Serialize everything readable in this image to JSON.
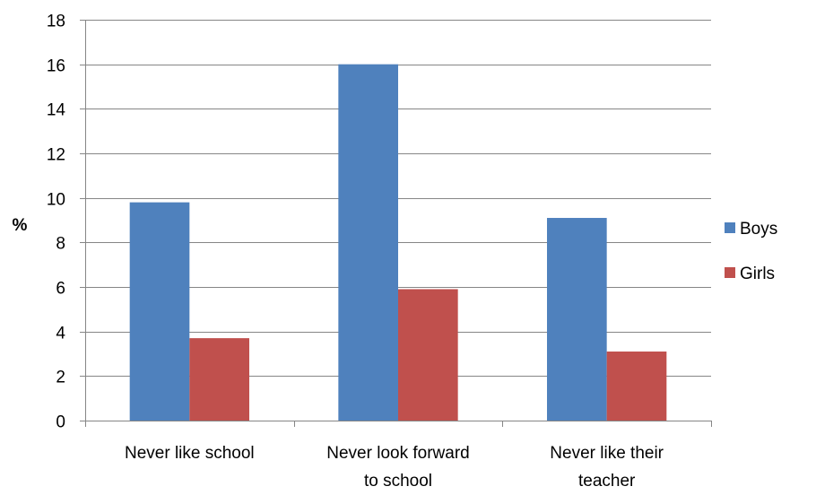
{
  "chart_data": {
    "type": "bar",
    "title": "",
    "xlabel": "",
    "ylabel": "%",
    "ylim": [
      0,
      18
    ],
    "yticks": [
      0,
      2,
      4,
      6,
      8,
      10,
      12,
      14,
      16,
      18
    ],
    "grid": true,
    "legend_position": "right",
    "categories": [
      [
        "Never like school"
      ],
      [
        "Never look forward",
        "to school"
      ],
      [
        "Never like their",
        "teacher"
      ]
    ],
    "series": [
      {
        "name": "Boys",
        "color": "#4F81BD",
        "values": [
          9.8,
          16.0,
          9.1
        ]
      },
      {
        "name": "Girls",
        "color": "#C0504D",
        "values": [
          3.7,
          5.9,
          3.1
        ]
      }
    ]
  }
}
